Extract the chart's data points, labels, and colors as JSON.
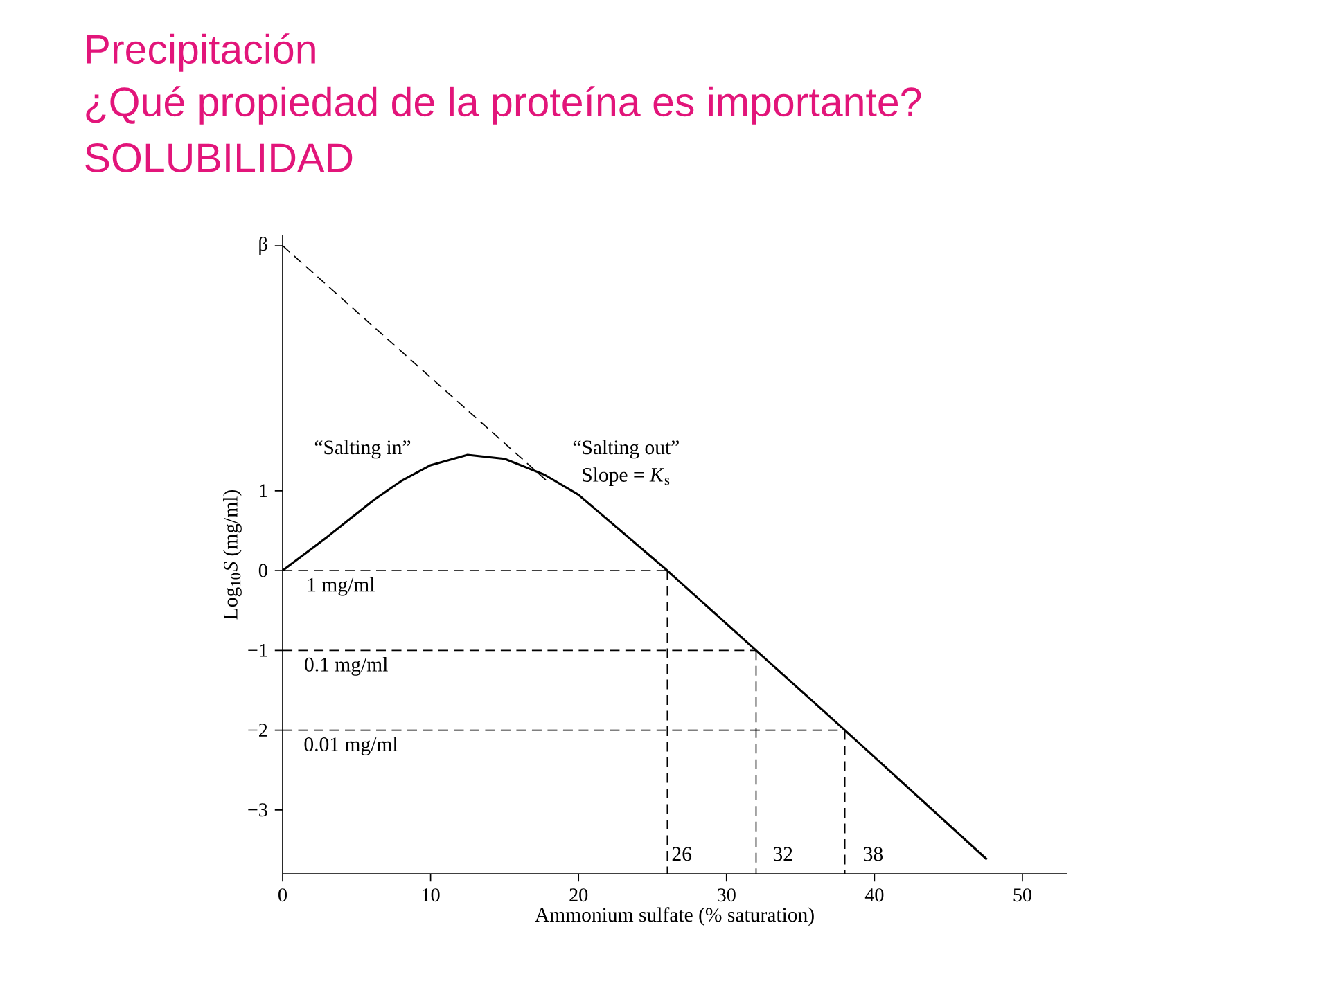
{
  "chart_data": {
    "type": "line",
    "title": "Precipitación",
    "subtitle": "¿Qué propiedad de la proteína es importante?",
    "xlabel": "Ammonium sulfate (% saturation)",
    "ylabel": "Log$_{10}$*S* (mg/ml)",
    "xlim": [
      0,
      53
    ],
    "ylim": [
      -3.8,
      4.2
    ],
    "xticks": [
      0,
      10,
      20,
      30,
      40,
      50
    ],
    "yticks": [
      {
        "value": -3,
        "label": "−3"
      },
      {
        "value": -2,
        "label": "−2"
      },
      {
        "value": -1,
        "label": "−1"
      },
      0,
      1,
      {
        "value": 4.07,
        "label": "β"
      }
    ],
    "series": [
      {
        "color": "#000000",
        "line_style": "solid",
        "x": [
          0,
          3,
          6.2,
          8,
          10,
          12.5,
          15,
          17.7,
          20,
          26,
          32,
          38,
          47.6
        ],
        "values": [
          0,
          0.42,
          0.89,
          1.12,
          1.32,
          1.45,
          1.4,
          1.2,
          0.95,
          0,
          -1,
          -2,
          -3.62
        ]
      },
      {
        "color": "#000000",
        "line_style": "dashed",
        "x": [
          0,
          18
        ],
        "values": [
          4.07,
          1.1
        ]
      },
      {
        "color": "#000000",
        "line_style": "dashed",
        "x": [
          0,
          26
        ],
        "values": [
          0,
          0
        ]
      },
      {
        "color": "#000000",
        "line_style": "dashed",
        "x": [
          0,
          32
        ],
        "values": [
          -1,
          -1
        ]
      },
      {
        "color": "#000000",
        "line_style": "dashed",
        "x": [
          0,
          38
        ],
        "values": [
          -2,
          -2
        ]
      },
      {
        "color": "#000000",
        "line_style": "dashed",
        "x": [
          26,
          26
        ],
        "values": [
          0,
          -3.8
        ]
      },
      {
        "color": "#000000",
        "line_style": "dashed",
        "x": [
          32,
          32
        ],
        "values": [
          -1,
          -3.8
        ]
      },
      {
        "color": "#000000",
        "line_style": "dashed",
        "x": [
          38,
          38
        ],
        "values": [
          -2,
          -3.8
        ]
      }
    ],
    "annotations": [
      "SOLUBILIDAD",
      "“Salting in”",
      "“Salting out”",
      "Slope = *K*$_{s}$",
      "1 mg/ml",
      "0.1 mg/ml",
      "0.01 mg/ml",
      "26",
      "32",
      "38"
    ]
  }
}
